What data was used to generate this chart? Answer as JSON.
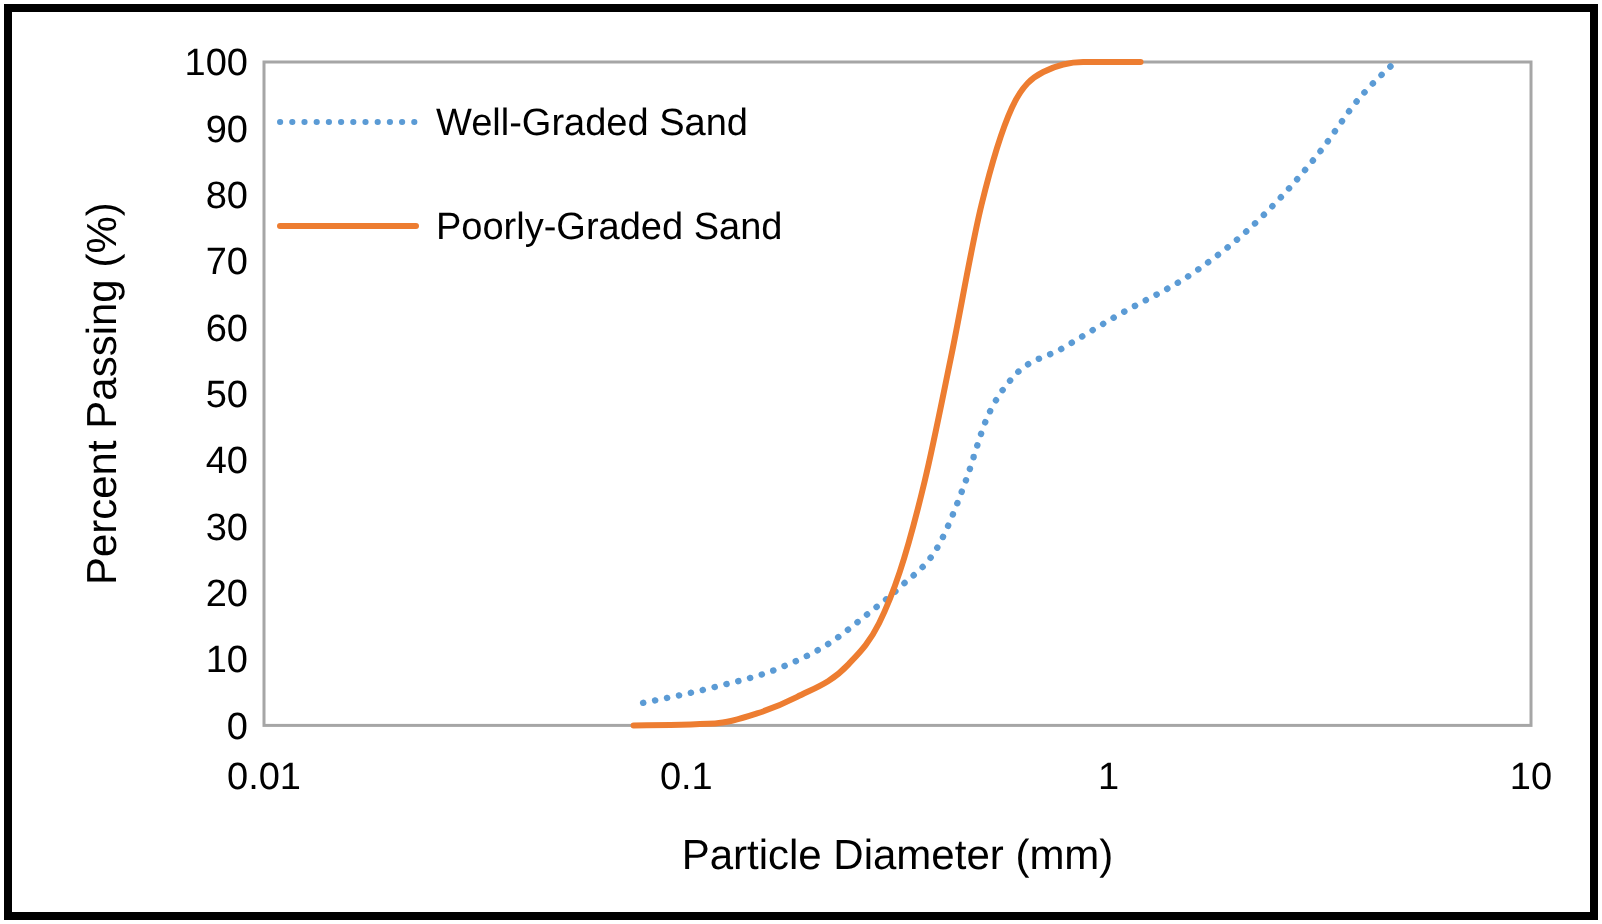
{
  "chart_data": {
    "type": "line",
    "xlabel": "Particle Diameter (mm)",
    "ylabel": "Percent Passing (%)",
    "log": "x",
    "xlim": [
      0.01,
      10
    ],
    "xticks": [
      0.01,
      0.1,
      1,
      10
    ],
    "ylim": [
      0,
      100
    ],
    "yticks": [
      0,
      10,
      20,
      30,
      40,
      50,
      60,
      70,
      80,
      90,
      100
    ],
    "grid": false,
    "legend": "top left",
    "marker": "none",
    "series": [
      {
        "name": "Well-Graded Sand",
        "color": "#5b9bd5",
        "line_style": "dotted",
        "x": [
          0.079,
          0.117,
          0.164,
          0.217,
          0.27,
          0.32,
          0.4,
          0.459,
          0.514,
          0.59,
          0.78,
          1.03,
          1.61,
          2.13,
          3.14,
          3.93,
          4.77
        ],
        "values": [
          3.4,
          5.8,
          8.5,
          12.3,
          16.9,
          20.8,
          27.7,
          36.9,
          46.2,
          52.3,
          56.9,
          61.5,
          68.5,
          74.6,
          86.2,
          94.6,
          100
        ]
      },
      {
        "name": "Poorly-Graded Sand",
        "color": "#ed7d31",
        "line_style": "solid",
        "x": [
          0.075,
          0.117,
          0.147,
          0.183,
          0.242,
          0.286,
          0.32,
          0.367,
          0.423,
          0.5,
          0.59,
          0.7,
          0.87,
          1.19
        ],
        "values": [
          0,
          0.3,
          1.8,
          4.3,
          9.2,
          15.4,
          23.1,
          36.9,
          55.4,
          78.5,
          93.1,
          98.5,
          100,
          100
        ]
      }
    ]
  }
}
